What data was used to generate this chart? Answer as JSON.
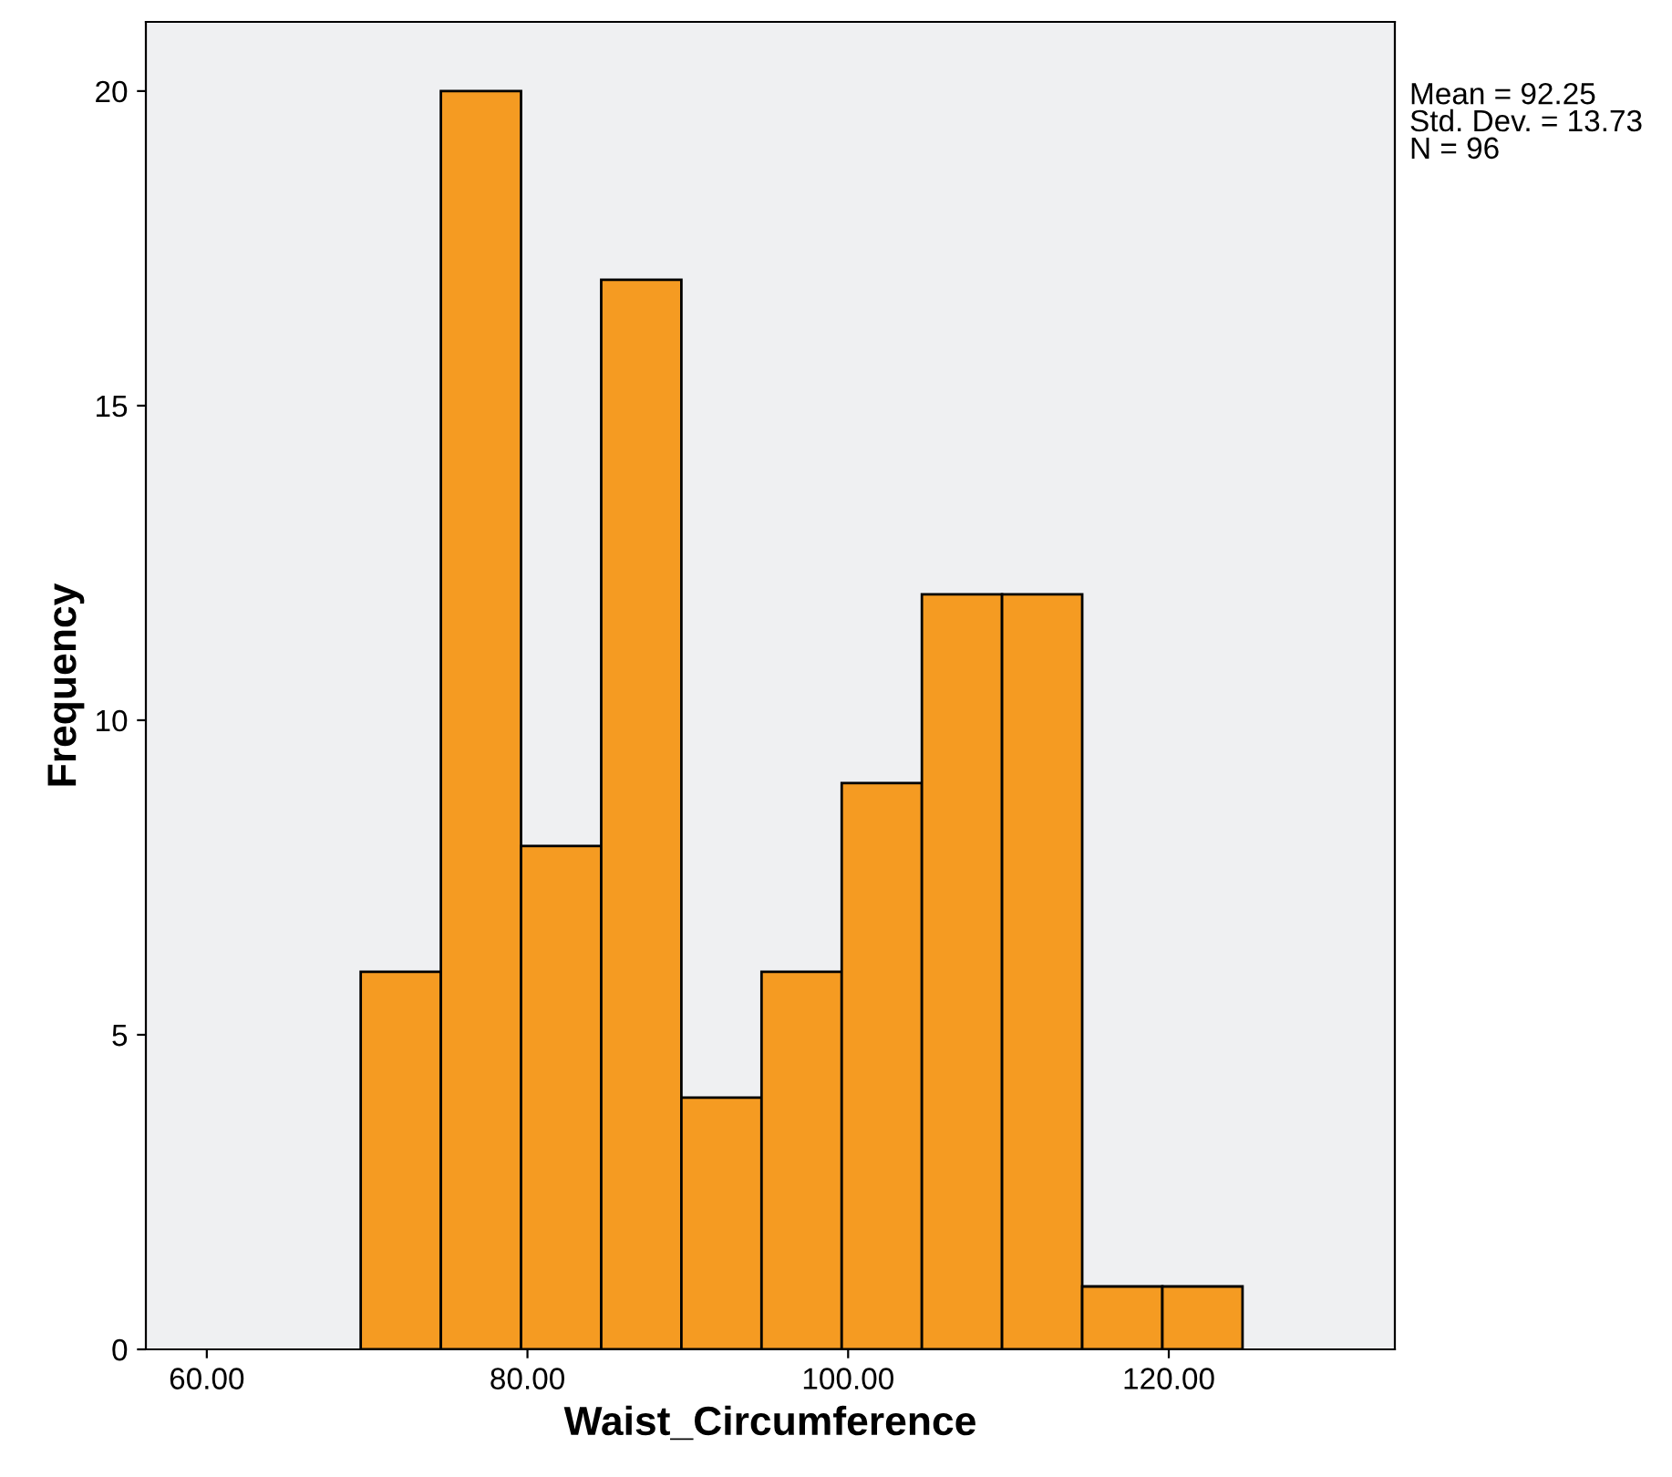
{
  "chart_data": {
    "type": "histogram",
    "xlabel": "Waist_Circumference",
    "ylabel": "Frequency",
    "bins": [
      69.6,
      74.6,
      79.6,
      84.6,
      89.6,
      94.6,
      99.6,
      104.6,
      109.6,
      114.6,
      119.6,
      124.6
    ],
    "values": [
      6,
      20,
      8,
      17,
      4,
      6,
      9,
      12,
      12,
      1,
      1
    ],
    "color": "#f59b22",
    "xlim": [
      56.2,
      134.1
    ],
    "xticks": [
      {
        "value": 60,
        "label": "60.00"
      },
      {
        "value": 80,
        "label": "80.00"
      },
      {
        "value": 100,
        "label": "100.00"
      },
      {
        "value": 120,
        "label": "120.00"
      }
    ],
    "ylim": [
      0,
      21.1
    ],
    "yticks": [
      0,
      5,
      10,
      15,
      20
    ],
    "grid": false,
    "annotations": [
      "Mean = 92.25\nStd. Dev. = 13.73\nN = 96"
    ]
  }
}
